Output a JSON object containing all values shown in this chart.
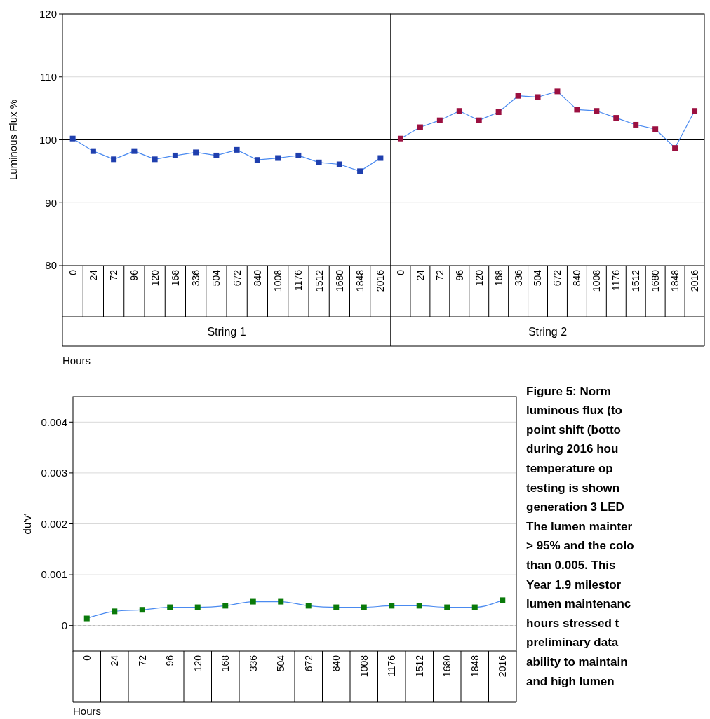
{
  "chart_data": [
    {
      "type": "line",
      "ylabel": "Luminous Flux %",
      "xlabel": "Hours",
      "categories": [
        "0",
        "24",
        "72",
        "96",
        "120",
        "168",
        "336",
        "504",
        "672",
        "840",
        "1008",
        "1176",
        "1512",
        "1680",
        "1848",
        "2016"
      ],
      "series": [
        {
          "color": "#1f3fae",
          "values": [
            100.2,
            98.2,
            96.9,
            98.2,
            96.9,
            97.5,
            98.0,
            97.5,
            98.4,
            96.8,
            97.1,
            97.5,
            96.4,
            96.1,
            95.0,
            97.1
          ]
        }
      ],
      "ylim": [
        80,
        120
      ],
      "yticks": [
        80,
        90,
        100,
        110,
        120
      ],
      "grid": "y",
      "marker": "square",
      "line_style": "solid",
      "ref_lines": [
        {
          "axis": "y",
          "value": 100,
          "color": "#000000",
          "line_style": "solid"
        }
      ],
      "annotations": [
        "String 1"
      ]
    },
    {
      "type": "line",
      "categories": [
        "0",
        "24",
        "72",
        "96",
        "120",
        "168",
        "336",
        "504",
        "672",
        "840",
        "1008",
        "1176",
        "1512",
        "1680",
        "1848",
        "2016"
      ],
      "series": [
        {
          "color": "#9b1040",
          "values": [
            100.2,
            102.0,
            103.1,
            104.6,
            103.1,
            104.4,
            107.0,
            106.8,
            107.7,
            104.8,
            104.6,
            103.5,
            102.4,
            101.7,
            98.7,
            104.6
          ]
        }
      ],
      "ylim": [
        80,
        120
      ],
      "yticks": [
        80,
        90,
        100,
        110,
        120
      ],
      "tick_labels": "x",
      "grid": "y",
      "marker": "square",
      "line_style": "solid",
      "ref_lines": [
        {
          "axis": "y",
          "value": 100,
          "color": "#000000",
          "line_style": "solid"
        }
      ],
      "annotations": [
        "String 2"
      ]
    },
    {
      "type": "line",
      "ylabel": "du'v'",
      "xlabel": "Hours",
      "categories": [
        "0",
        "24",
        "72",
        "96",
        "120",
        "168",
        "336",
        "504",
        "672",
        "840",
        "1008",
        "1176",
        "1512",
        "1680",
        "1848",
        "2016"
      ],
      "series": [
        {
          "color": "#0a7a0a",
          "values": [
            0.00014,
            0.00028,
            0.00031,
            0.00036,
            0.00036,
            0.00039,
            0.00047,
            0.00047,
            0.00039,
            0.00036,
            0.00036,
            0.00039,
            0.00039,
            0.00036,
            0.00036,
            0.0005
          ]
        }
      ],
      "ylim": [
        -0.0005,
        0.0045
      ],
      "yticks": [
        0,
        0.001,
        0.002,
        0.003,
        0.004
      ],
      "grid": "y",
      "marker": "square",
      "line_style": "solid",
      "ref_lines": [
        {
          "axis": "y",
          "value": 0,
          "color": "#bbbbbb",
          "line_style": "dashed"
        }
      ],
      "annotations": [
        "Figure 5: Norm\nluminous flux (to\npoint shift (botto\nduring 2016 hou\ntemperature op\ntesting is shown\ngeneration 3 LED\nThe lumen mainter\n> 95% and the colo\nthan 0.005. This\nYear 1.9 milestor\nlumen maintenanc\nhours stressed t\npreliminary data\nability to maintain\nand high lumen"
      ]
    }
  ]
}
